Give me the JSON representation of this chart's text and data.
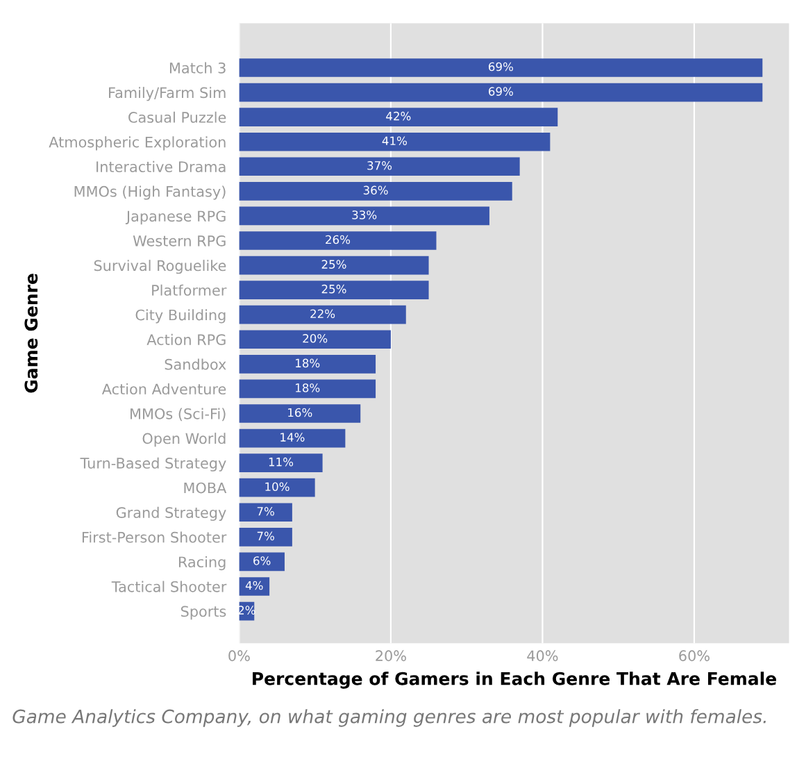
{
  "chart_data": {
    "type": "bar",
    "orientation": "horizontal",
    "xlabel": "Percentage of Gamers in Each Genre That Are Female",
    "ylabel": "Game Genre",
    "categories": [
      "Match 3",
      "Family/Farm Sim",
      "Casual Puzzle",
      "Atmospheric Exploration",
      "Interactive Drama",
      "MMOs (High Fantasy)",
      "Japanese RPG",
      "Western RPG",
      "Survival Roguelike",
      "Platformer",
      "City Building",
      "Action RPG",
      "Sandbox",
      "Action Adventure",
      "MMOs (Sci-Fi)",
      "Open World",
      "Turn-Based Strategy",
      "MOBA",
      "Grand Strategy",
      "First-Person Shooter",
      "Racing",
      "Tactical Shooter",
      "Sports"
    ],
    "values": [
      69,
      69,
      42,
      41,
      37,
      36,
      33,
      26,
      25,
      25,
      22,
      20,
      18,
      18,
      16,
      14,
      11,
      10,
      7,
      7,
      6,
      4,
      2
    ],
    "value_labels": [
      "69%",
      "69%",
      "42%",
      "41%",
      "37%",
      "36%",
      "33%",
      "26%",
      "25%",
      "25%",
      "22%",
      "20%",
      "18%",
      "18%",
      "16%",
      "14%",
      "11%",
      "10%",
      "7%",
      "7%",
      "6%",
      "4%",
      "2%"
    ],
    "color": "#3a56ac",
    "xlim": [
      0,
      72.5
    ],
    "xticks": [
      {
        "value": 0,
        "label": "0%"
      },
      {
        "value": 20,
        "label": "20%"
      },
      {
        "value": 40,
        "label": "40%"
      },
      {
        "value": 60,
        "label": "60%"
      }
    ],
    "grid": "x",
    "annotations": [
      "Game Analytics Company, on what gaming genres are most popular with females."
    ]
  }
}
